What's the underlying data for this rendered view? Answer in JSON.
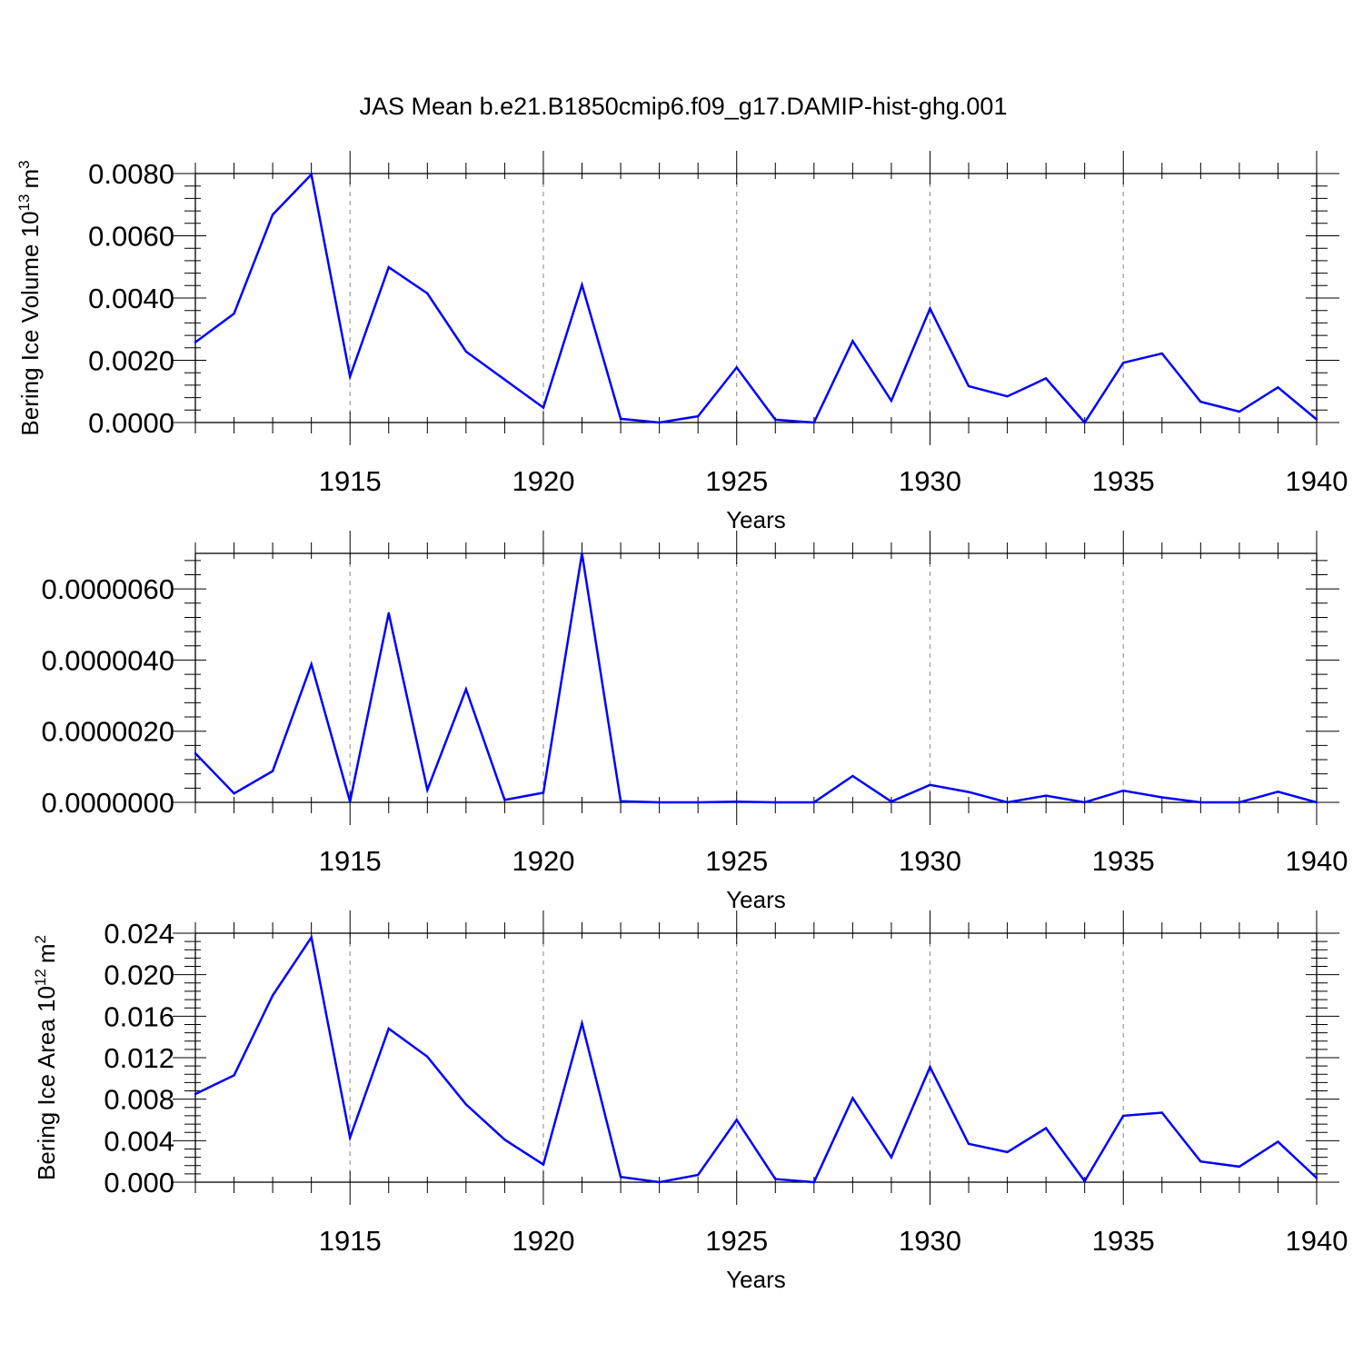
{
  "title": "JAS Mean b.e21.B1850cmip6.f09_g17.DAMIP-hist-ghg.001",
  "series_color": "#0000ff",
  "grid_color": "#9a9a9a",
  "chart_data": [
    {
      "type": "line",
      "title": "JAS Mean b.e21.B1850cmip6.f09_g17.DAMIP-hist-ghg.001",
      "xlabel": "Years",
      "ylabel": "Bering Ice Volume 10",
      "ylabel_sup": "13",
      "ylabel_unit": "m",
      "ylabel_unit_sup": "3",
      "x": [
        1911,
        1912,
        1913,
        1914,
        1915,
        1916,
        1917,
        1918,
        1919,
        1920,
        1921,
        1922,
        1923,
        1924,
        1925,
        1926,
        1927,
        1928,
        1929,
        1930,
        1931,
        1932,
        1933,
        1934,
        1935,
        1936,
        1937,
        1938,
        1939,
        1940
      ],
      "values": [
        0.00258,
        0.0035,
        0.00668,
        0.00797,
        0.00148,
        0.00499,
        0.00415,
        0.00228,
        0.00138,
        0.00048,
        0.00442,
        0.00012,
        0.0,
        0.0002,
        0.00177,
        9e-05,
        0.0,
        0.00262,
        0.0007,
        0.00366,
        0.00117,
        0.00084,
        0.00142,
        0.0,
        0.00192,
        0.00222,
        0.00067,
        0.00035,
        0.00113,
        0.0001
      ],
      "xlim": [
        1911,
        1940
      ],
      "ylim": [
        0,
        0.008
      ],
      "xticks": [
        1915,
        1920,
        1925,
        1930,
        1935,
        1940
      ],
      "xtick_labels": [
        "1915",
        "1920",
        "1925",
        "1930",
        "1935",
        "1940"
      ],
      "yticks": [
        0,
        0.002,
        0.004,
        0.006,
        0.008
      ],
      "ytick_labels": [
        "0.0000",
        "0.0020",
        "0.0040",
        "0.0060",
        "0.0080"
      ],
      "grid": "dashed vertical at labeled years"
    },
    {
      "type": "line",
      "xlabel": "Years",
      "ylabel": "",
      "x": [
        1911,
        1912,
        1913,
        1914,
        1915,
        1916,
        1917,
        1918,
        1919,
        1920,
        1921,
        1922,
        1923,
        1924,
        1925,
        1926,
        1927,
        1928,
        1929,
        1930,
        1931,
        1932,
        1933,
        1934,
        1935,
        1936,
        1937,
        1938,
        1939,
        1940
      ],
      "values": [
        1.38e-06,
        2.5e-07,
        8.8e-07,
        3.88e-06,
        2e-08,
        5.32e-06,
        3.5e-07,
        3.18e-06,
        7e-08,
        2.7e-07,
        7e-06,
        3e-08,
        0.0,
        0.0,
        2e-08,
        0.0,
        0.0,
        7.4e-07,
        2e-08,
        4.9e-07,
        2.9e-07,
        0.0,
        1.9e-07,
        0.0,
        3.3e-07,
        1.4e-07,
        0.0,
        0.0,
        3e-07,
        0.0
      ],
      "xlim": [
        1911,
        1940
      ],
      "ylim": [
        0,
        7e-06
      ],
      "xticks": [
        1915,
        1920,
        1925,
        1930,
        1935,
        1940
      ],
      "xtick_labels": [
        "1915",
        "1920",
        "1925",
        "1930",
        "1935",
        "1940"
      ],
      "yticks": [
        0,
        2e-06,
        4e-06,
        6e-06
      ],
      "ytick_labels": [
        "0.0000000",
        "0.0000020",
        "0.0000040",
        "0.0000060"
      ],
      "grid": "dashed vertical at labeled years"
    },
    {
      "type": "line",
      "xlabel": "Years",
      "ylabel": "Bering Ice Area 10",
      "ylabel_sup": "12",
      "ylabel_unit": "m",
      "ylabel_unit_sup": "2",
      "x": [
        1911,
        1912,
        1913,
        1914,
        1915,
        1916,
        1917,
        1918,
        1919,
        1920,
        1921,
        1922,
        1923,
        1924,
        1925,
        1926,
        1927,
        1928,
        1929,
        1930,
        1931,
        1932,
        1933,
        1934,
        1935,
        1936,
        1937,
        1938,
        1939,
        1940
      ],
      "values": [
        0.0085,
        0.0103,
        0.018,
        0.0236,
        0.0043,
        0.0148,
        0.0121,
        0.0075,
        0.0041,
        0.0017,
        0.0153,
        0.0005,
        0.0,
        0.0007,
        0.006,
        0.0003,
        0.0,
        0.0081,
        0.0024,
        0.0111,
        0.0037,
        0.0029,
        0.0052,
        0.0001,
        0.0064,
        0.0067,
        0.002,
        0.0015,
        0.0039,
        0.0004
      ],
      "xlim": [
        1911,
        1940
      ],
      "ylim": [
        0,
        0.024
      ],
      "xticks": [
        1915,
        1920,
        1925,
        1930,
        1935,
        1940
      ],
      "xtick_labels": [
        "1915",
        "1920",
        "1925",
        "1930",
        "1935",
        "1940"
      ],
      "yticks": [
        0,
        0.004,
        0.008,
        0.012,
        0.016,
        0.02,
        0.024
      ],
      "ytick_labels": [
        "0.000",
        "0.004",
        "0.008",
        "0.012",
        "0.016",
        "0.020",
        "0.024"
      ],
      "grid": "dashed vertical at labeled years"
    }
  ]
}
